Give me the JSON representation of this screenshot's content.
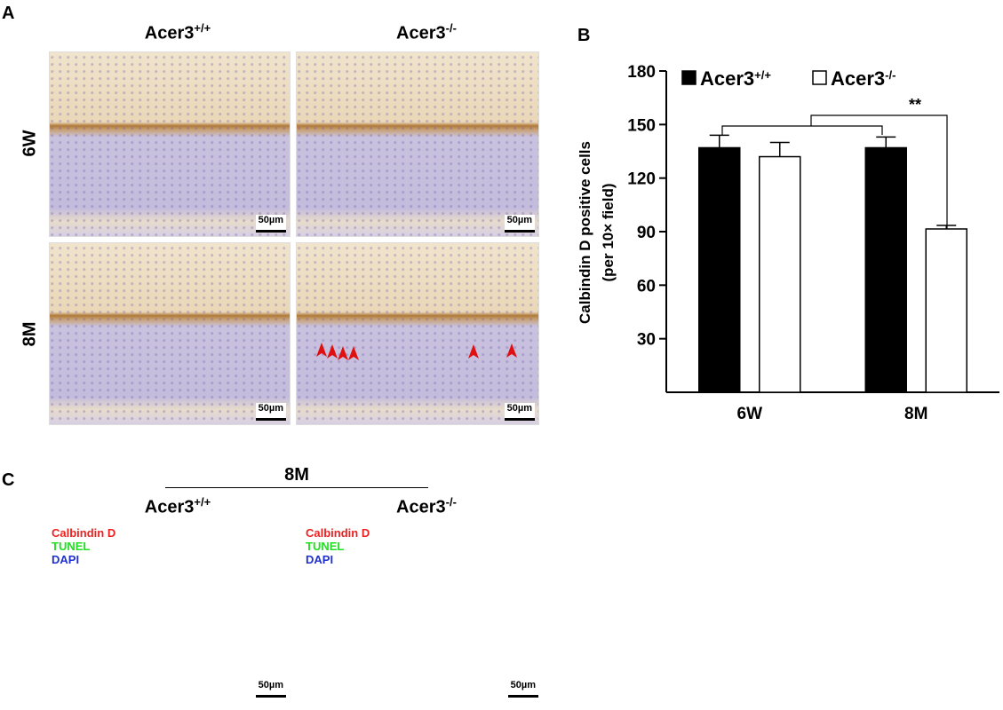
{
  "panel_a": {
    "label": "A",
    "columns": [
      "Acer3+/+",
      "Acer3-/-"
    ],
    "rows": [
      "6W",
      "8M"
    ],
    "scale_bar": "50µm"
  },
  "chart_data": {
    "type": "bar",
    "panel_label": "B",
    "y_label": [
      "Calbindin D positive cells",
      "(per 10× field)"
    ],
    "categories": [
      "6W",
      "8M"
    ],
    "series": [
      {
        "name": "Acer3+/+",
        "color": "#000000",
        "values": [
          137,
          137
        ],
        "errors": [
          7,
          6
        ]
      },
      {
        "name": "Acer3-/-",
        "color": "#ffffff",
        "values": [
          132,
          91.5
        ],
        "errors": [
          8,
          2
        ]
      }
    ],
    "ylim": [
      0,
      180
    ],
    "yticks": [
      30,
      60,
      90,
      120,
      150,
      180
    ],
    "significance": "**"
  },
  "panel_c": {
    "label": "C",
    "group": "8M",
    "columns": [
      "Acer3+/+",
      "Acer3-/-"
    ],
    "stains": [
      "Calbindin D",
      "TUNEL",
      "DAPI"
    ],
    "scale_bar": "50µm"
  }
}
